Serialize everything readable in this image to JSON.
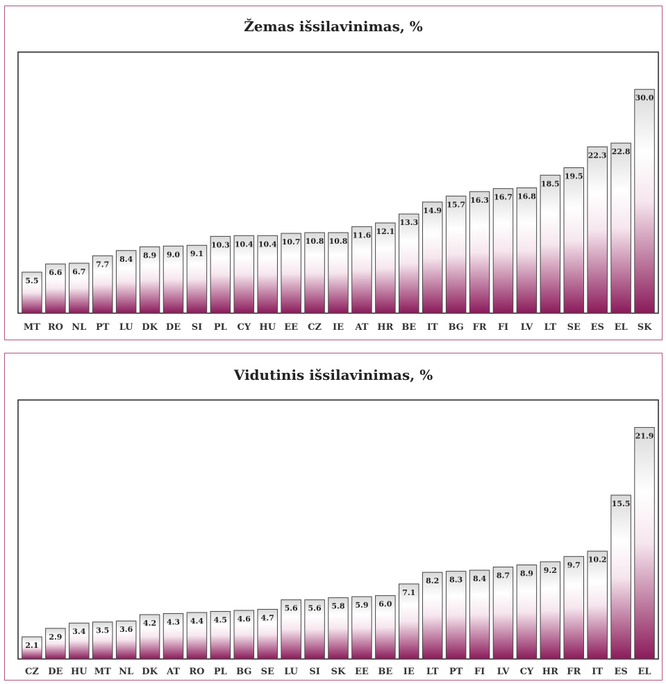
{
  "colors": {
    "bar_top": "#ffffff",
    "bar_bottom": "#8b1a5a",
    "bar_border": "#444444",
    "panel_border": "#b0557e",
    "plot_border": "#222222"
  },
  "chart_data": [
    {
      "type": "bar",
      "title": "Žemas išsilavinimas, %",
      "categories": [
        "MT",
        "RO",
        "NL",
        "PT",
        "LU",
        "DK",
        "DE",
        "SI",
        "PL",
        "CY",
        "HU",
        "EE",
        "CZ",
        "IE",
        "AT",
        "HR",
        "BE",
        "IT",
        "BG",
        "FR",
        "FI",
        "LV",
        "LT",
        "SE",
        "ES",
        "EL",
        "SK"
      ],
      "values": [
        5.5,
        6.6,
        6.7,
        7.7,
        8.4,
        8.9,
        9.0,
        9.1,
        10.3,
        10.4,
        10.4,
        10.7,
        10.8,
        10.8,
        11.6,
        12.1,
        13.3,
        14.9,
        15.7,
        16.3,
        16.7,
        16.8,
        18.5,
        19.5,
        22.3,
        22.8,
        30.0
      ],
      "labels": [
        "5.5",
        "6.6",
        "6.7",
        "7.7",
        "8.4",
        "8.9",
        "9.0",
        "9.1",
        "10.3",
        "10.4",
        "10.4",
        "10.7",
        "10.8",
        "10.8",
        "11.6",
        "12.1",
        "13.3",
        "14.9",
        "15.7",
        "16.3",
        "16.7",
        "16.8",
        "18.5",
        "19.5",
        "22.3",
        "22.8",
        "30.0"
      ],
      "ylim": [
        0,
        35
      ],
      "grid": false
    },
    {
      "type": "bar",
      "title": "Vidutinis išsilavinimas, %",
      "categories": [
        "CZ",
        "DE",
        "HU",
        "MT",
        "NL",
        "DK",
        "AT",
        "RO",
        "PL",
        "BG",
        "SE",
        "LU",
        "SI",
        "SK",
        "EE",
        "BE",
        "IE",
        "LT",
        "PT",
        "FI",
        "LV",
        "CY",
        "HR",
        "FR",
        "IT",
        "ES",
        "EL"
      ],
      "values": [
        2.1,
        2.9,
        3.4,
        3.5,
        3.6,
        4.2,
        4.3,
        4.4,
        4.5,
        4.6,
        4.7,
        5.6,
        5.6,
        5.8,
        5.9,
        6.0,
        7.1,
        8.2,
        8.3,
        8.4,
        8.7,
        8.9,
        9.2,
        9.7,
        10.2,
        15.5,
        21.9
      ],
      "labels": [
        "2.1",
        "2.9",
        "3.4",
        "3.5",
        "3.6",
        "4.2",
        "4.3",
        "4.4",
        "4.5",
        "4.6",
        "4.7",
        "5.6",
        "5.6",
        "5.8",
        "5.9",
        "6.0",
        "7.1",
        "8.2",
        "8.3",
        "8.4",
        "8.7",
        "8.9",
        "9.2",
        "9.7",
        "10.2",
        "15.5",
        "21.9"
      ],
      "ylim": [
        0,
        24.5
      ],
      "grid": false
    }
  ]
}
